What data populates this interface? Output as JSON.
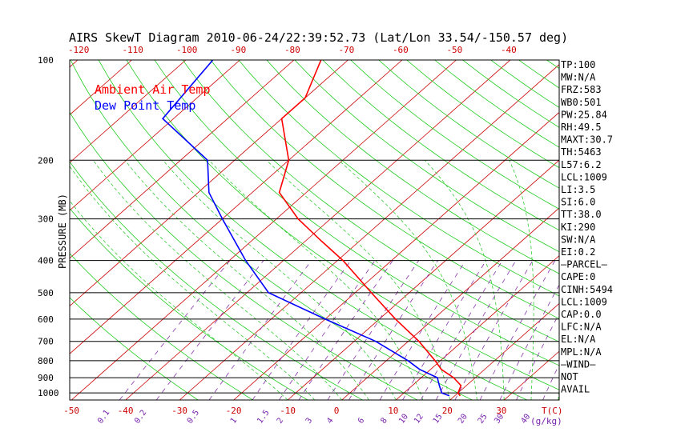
{
  "chart_data": {
    "type": "line",
    "title": "AIRS SkewT Diagram 2010-06-24/22:39:52.73 (Lat/Lon 33.54/-150.57 deg)",
    "ylabel": "PRESSURE (MB)",
    "xlabel": "T(C)",
    "mixing_ratio_unit": "(g/kg)",
    "y_scale": "log",
    "ylim": [
      1050,
      100
    ],
    "pressure_ticks": [
      100,
      200,
      300,
      400,
      500,
      600,
      700,
      800,
      900,
      1000
    ],
    "bottom_temp_ticks": [
      -50,
      -40,
      -30,
      -20,
      -10,
      0,
      10,
      20,
      30
    ],
    "top_temp_ticks": [
      -120,
      -110,
      -100,
      -90,
      -80,
      -70,
      -60,
      -50,
      -40
    ],
    "mixing_ratio_labels": [
      "0.1",
      "0.2",
      "0.5",
      "1",
      "1.5",
      "2",
      "3",
      "4",
      "6",
      "8",
      "10",
      "12",
      "15",
      "20",
      "25",
      "30",
      "40"
    ],
    "mixing_ratio_values": [
      0.1,
      0.2,
      0.5,
      1,
      1.5,
      2,
      3,
      4,
      6,
      8,
      10,
      12,
      15,
      20,
      25,
      30,
      40
    ],
    "legend": [
      {
        "name": "Ambient Air Temp",
        "color": "#ff0000"
      },
      {
        "name": "Dew Point Temp",
        "color": "#0000ff"
      }
    ],
    "series": [
      {
        "name": "Ambient Air Temp",
        "color": "#ff0000",
        "points": [
          {
            "p": 100,
            "t": -75
          },
          {
            "p": 130,
            "t": -70
          },
          {
            "p": 150,
            "t": -70
          },
          {
            "p": 200,
            "t": -60
          },
          {
            "p": 250,
            "t": -55
          },
          {
            "p": 300,
            "t": -46
          },
          {
            "p": 350,
            "t": -37
          },
          {
            "p": 400,
            "t": -29
          },
          {
            "p": 500,
            "t": -17
          },
          {
            "p": 600,
            "t": -7
          },
          {
            "p": 700,
            "t": 2
          },
          {
            "p": 800,
            "t": 9
          },
          {
            "p": 850,
            "t": 12
          },
          {
            "p": 900,
            "t": 16
          },
          {
            "p": 950,
            "t": 19
          },
          {
            "p": 1000,
            "t": 20
          },
          {
            "p": 1020,
            "t": 21
          }
        ]
      },
      {
        "name": "Dew Point Temp",
        "color": "#0000ff",
        "points": [
          {
            "p": 100,
            "t": -95
          },
          {
            "p": 150,
            "t": -92
          },
          {
            "p": 200,
            "t": -75
          },
          {
            "p": 250,
            "t": -68
          },
          {
            "p": 300,
            "t": -60
          },
          {
            "p": 400,
            "t": -47
          },
          {
            "p": 500,
            "t": -36
          },
          {
            "p": 600,
            "t": -20
          },
          {
            "p": 700,
            "t": -6
          },
          {
            "p": 800,
            "t": 4
          },
          {
            "p": 850,
            "t": 8
          },
          {
            "p": 900,
            "t": 13
          },
          {
            "p": 950,
            "t": 15
          },
          {
            "p": 1000,
            "t": 17
          },
          {
            "p": 1020,
            "t": 19
          }
        ]
      }
    ],
    "indices": [
      "TP:100",
      "MW:N/A",
      "FRZ:583",
      "WB0:501",
      "PW:25.84",
      "RH:49.5",
      "MAXT:30.7",
      "TH:5463",
      "L57:6.2",
      "LCL:1009",
      "LI:3.5",
      "SI:6.0",
      "TT:38.0",
      "KI:290",
      "SW:N/A",
      "EI:0.2",
      "—PARCEL—",
      "CAPE:0",
      "CINH:5494",
      "LCL:1009",
      "CAP:0.0",
      "LFC:N/A",
      "EL:N/A",
      "MPL:N/A",
      "—WIND—",
      "NOT",
      "AVAIL"
    ]
  }
}
